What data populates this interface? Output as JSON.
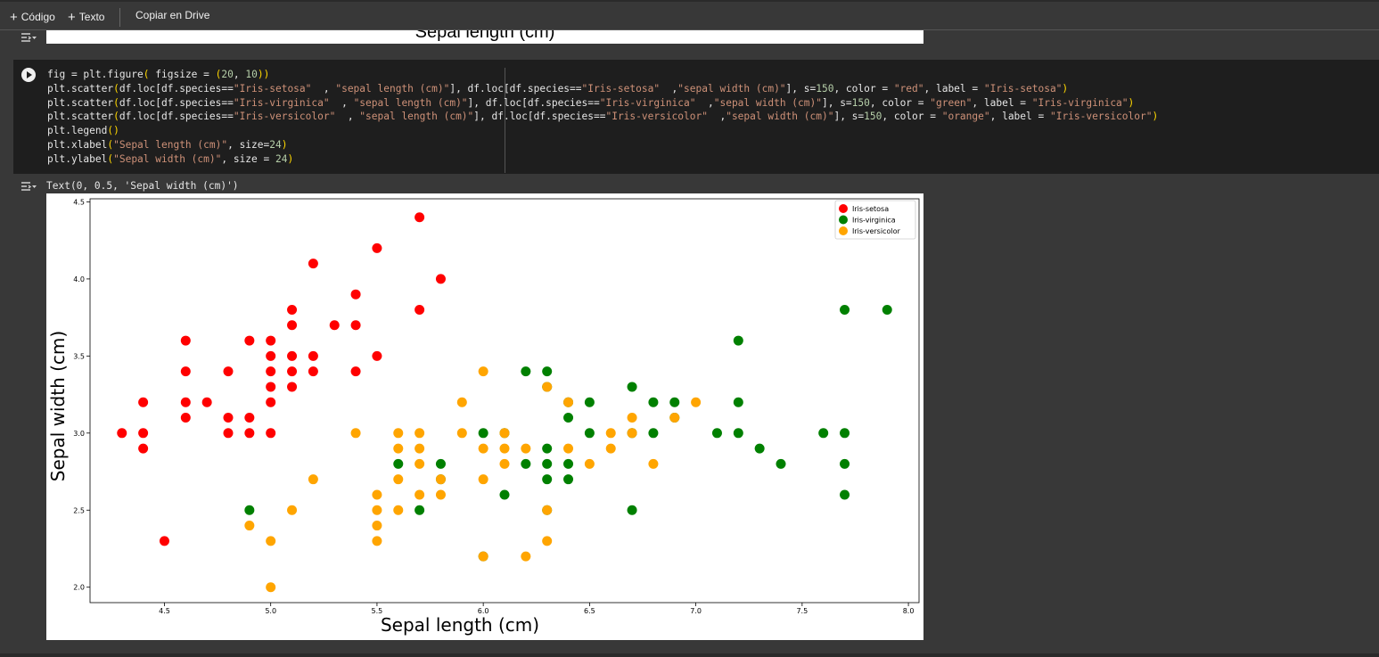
{
  "toolbar": {
    "code_label": "Código",
    "text_label": "Texto",
    "drive_label": "Copiar en Drive"
  },
  "previous_output": {
    "xlabel": "Sepal length (cm)"
  },
  "cell": {
    "code_lines": [
      "fig = plt.figure( figsize = (20, 10))",
      "plt.scatter(df.loc[df.species==\"Iris-setosa\"  , \"sepal length (cm)\"], df.loc[df.species==\"Iris-setosa\"  ,\"sepal width (cm)\"], s=150, color = \"red\", label = \"Iris-setosa\")",
      "plt.scatter(df.loc[df.species==\"Iris-virginica\"  , \"sepal length (cm)\"], df.loc[df.species==\"Iris-virginica\"  ,\"sepal width (cm)\"], s=150, color = \"green\", label = \"Iris-virginica\")",
      "plt.scatter(df.loc[df.species==\"Iris-versicolor\"  , \"sepal length (cm)\"], df.loc[df.species==\"Iris-versicolor\"  ,\"sepal width (cm)\"], s=150, color = \"orange\", label = \"Iris-versicolor\")",
      "plt.legend()",
      "plt.xlabel(\"Sepal length (cm)\", size=24)",
      "plt.ylabel(\"Sepal width (cm)\", size = 24)"
    ],
    "output_text": "Text(0, 0.5, 'Sepal width (cm)')"
  },
  "chart_data": {
    "type": "scatter",
    "xlabel": "Sepal length (cm)",
    "ylabel": "Sepal width (cm)",
    "xlim": [
      4.15,
      8.05
    ],
    "ylim": [
      1.9,
      4.52
    ],
    "xticks": [
      "4.5",
      "5.0",
      "5.5",
      "6.0",
      "6.5",
      "7.0",
      "7.5",
      "8.0"
    ],
    "yticks": [
      "2.0",
      "2.5",
      "3.0",
      "3.5",
      "4.0",
      "4.5"
    ],
    "legend_position": "top-right",
    "grid": false,
    "series": [
      {
        "name": "Iris-setosa",
        "color": "#ff0000",
        "points": [
          [
            4.3,
            3.0
          ],
          [
            4.4,
            3.2
          ],
          [
            4.4,
            3.0
          ],
          [
            4.4,
            2.9
          ],
          [
            4.5,
            2.3
          ],
          [
            4.6,
            3.6
          ],
          [
            4.6,
            3.4
          ],
          [
            4.6,
            3.2
          ],
          [
            4.6,
            3.1
          ],
          [
            4.7,
            3.2
          ],
          [
            4.8,
            3.4
          ],
          [
            4.8,
            3.1
          ],
          [
            4.8,
            3.0
          ],
          [
            4.9,
            3.6
          ],
          [
            4.9,
            3.1
          ],
          [
            4.9,
            3.0
          ],
          [
            5.0,
            3.6
          ],
          [
            5.0,
            3.5
          ],
          [
            5.0,
            3.4
          ],
          [
            5.0,
            3.3
          ],
          [
            5.0,
            3.2
          ],
          [
            5.0,
            3.0
          ],
          [
            5.1,
            3.8
          ],
          [
            5.1,
            3.7
          ],
          [
            5.1,
            3.5
          ],
          [
            5.1,
            3.4
          ],
          [
            5.1,
            3.3
          ],
          [
            5.2,
            4.1
          ],
          [
            5.2,
            3.5
          ],
          [
            5.2,
            3.4
          ],
          [
            5.3,
            3.7
          ],
          [
            5.4,
            3.9
          ],
          [
            5.4,
            3.7
          ],
          [
            5.4,
            3.4
          ],
          [
            5.5,
            4.2
          ],
          [
            5.5,
            3.5
          ],
          [
            5.7,
            4.4
          ],
          [
            5.7,
            3.8
          ],
          [
            5.8,
            4.0
          ]
        ]
      },
      {
        "name": "Iris-virginica",
        "color": "#008000",
        "points": [
          [
            4.9,
            2.5
          ],
          [
            5.6,
            2.8
          ],
          [
            5.7,
            2.5
          ],
          [
            5.8,
            2.8
          ],
          [
            5.8,
            2.7
          ],
          [
            6.0,
            3.0
          ],
          [
            6.0,
            2.2
          ],
          [
            6.1,
            3.0
          ],
          [
            6.1,
            2.6
          ],
          [
            6.2,
            3.4
          ],
          [
            6.2,
            2.8
          ],
          [
            6.3,
            3.4
          ],
          [
            6.3,
            3.3
          ],
          [
            6.3,
            2.9
          ],
          [
            6.3,
            2.8
          ],
          [
            6.3,
            2.7
          ],
          [
            6.3,
            2.5
          ],
          [
            6.4,
            3.2
          ],
          [
            6.4,
            3.1
          ],
          [
            6.4,
            2.8
          ],
          [
            6.4,
            2.7
          ],
          [
            6.5,
            3.2
          ],
          [
            6.5,
            3.0
          ],
          [
            6.7,
            3.3
          ],
          [
            6.7,
            3.0
          ],
          [
            6.7,
            2.5
          ],
          [
            6.8,
            3.2
          ],
          [
            6.8,
            3.0
          ],
          [
            6.9,
            3.2
          ],
          [
            6.9,
            3.1
          ],
          [
            7.1,
            3.0
          ],
          [
            7.2,
            3.6
          ],
          [
            7.2,
            3.2
          ],
          [
            7.2,
            3.0
          ],
          [
            7.3,
            2.9
          ],
          [
            7.4,
            2.8
          ],
          [
            7.6,
            3.0
          ],
          [
            7.7,
            3.8
          ],
          [
            7.7,
            3.0
          ],
          [
            7.7,
            2.8
          ],
          [
            7.7,
            2.6
          ],
          [
            7.9,
            3.8
          ]
        ]
      },
      {
        "name": "Iris-versicolor",
        "color": "#ffa500",
        "points": [
          [
            4.9,
            2.4
          ],
          [
            5.0,
            2.3
          ],
          [
            5.0,
            2.0
          ],
          [
            5.1,
            2.5
          ],
          [
            5.2,
            2.7
          ],
          [
            5.4,
            3.0
          ],
          [
            5.5,
            2.6
          ],
          [
            5.5,
            2.5
          ],
          [
            5.5,
            2.4
          ],
          [
            5.5,
            2.3
          ],
          [
            5.6,
            3.0
          ],
          [
            5.6,
            2.9
          ],
          [
            5.6,
            2.7
          ],
          [
            5.6,
            2.5
          ],
          [
            5.7,
            3.0
          ],
          [
            5.7,
            2.9
          ],
          [
            5.7,
            2.8
          ],
          [
            5.7,
            2.6
          ],
          [
            5.8,
            2.7
          ],
          [
            5.8,
            2.6
          ],
          [
            5.9,
            3.2
          ],
          [
            5.9,
            3.0
          ],
          [
            6.0,
            3.4
          ],
          [
            6.0,
            2.9
          ],
          [
            6.0,
            2.7
          ],
          [
            6.0,
            2.2
          ],
          [
            6.1,
            3.0
          ],
          [
            6.1,
            2.9
          ],
          [
            6.1,
            2.8
          ],
          [
            6.2,
            2.9
          ],
          [
            6.2,
            2.2
          ],
          [
            6.3,
            3.3
          ],
          [
            6.3,
            2.5
          ],
          [
            6.3,
            2.3
          ],
          [
            6.4,
            3.2
          ],
          [
            6.4,
            2.9
          ],
          [
            6.5,
            2.8
          ],
          [
            6.6,
            3.0
          ],
          [
            6.6,
            2.9
          ],
          [
            6.7,
            3.1
          ],
          [
            6.7,
            3.0
          ],
          [
            6.8,
            2.8
          ],
          [
            6.9,
            3.1
          ],
          [
            7.0,
            3.2
          ]
        ]
      }
    ]
  }
}
